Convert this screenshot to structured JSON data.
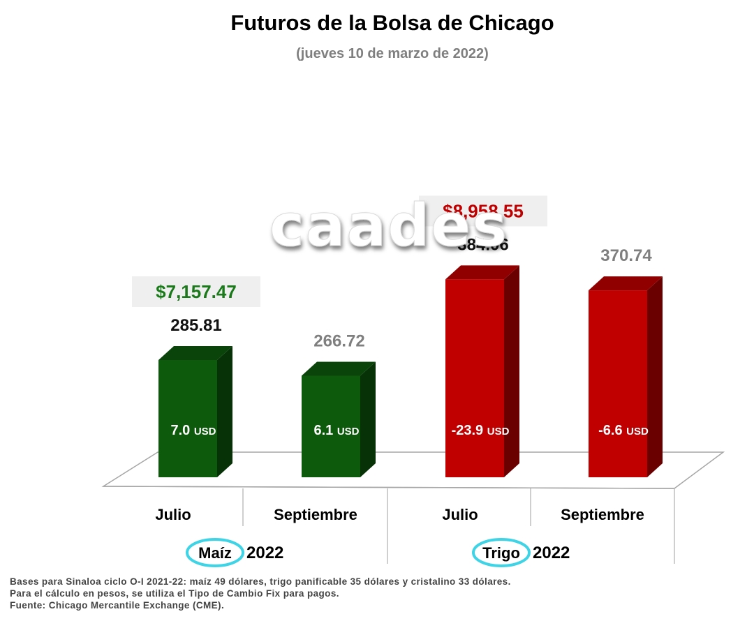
{
  "chart_data": {
    "type": "bar",
    "title": "Futuros de la Bolsa de Chicago",
    "subtitle": "(jueves 10 de marzo de 2022)",
    "watermark": "caades",
    "groups": [
      {
        "name": "Maíz",
        "year": "2022",
        "color": "#0d5a0d",
        "peso_price": "$7,157.47",
        "peso_color": "#1a7a1a",
        "categories": [
          "Julio",
          "Septiembre"
        ],
        "values": [
          285.81,
          266.72
        ],
        "value_labels": [
          "285.81",
          "266.72"
        ],
        "bases": [
          "7.0",
          "6.1"
        ]
      },
      {
        "name": "Trigo",
        "year": "2022",
        "color": "#c00000",
        "peso_price": "$8,958.55",
        "peso_color": "#c00000",
        "categories": [
          "Julio",
          "Septiembre"
        ],
        "values": [
          384.06,
          370.74
        ],
        "value_labels": [
          "384.06",
          "370.74"
        ],
        "bases": [
          "-23.9",
          "-6.6"
        ]
      }
    ],
    "base_unit": "USD",
    "value_label_colors": [
      "#111111",
      "#7f7f7f"
    ]
  },
  "footnotes": [
    "Bases para Sinaloa ciclo O-I 2021-22: maíz 49 dólares, trigo panificable 35 dólares y cristalino 33 dólares.",
    "Para el cálculo en pesos, se utiliza el Tipo de Cambio Fix para pagos.",
    "Fuente: Chicago Mercantile Exchange (CME)."
  ]
}
